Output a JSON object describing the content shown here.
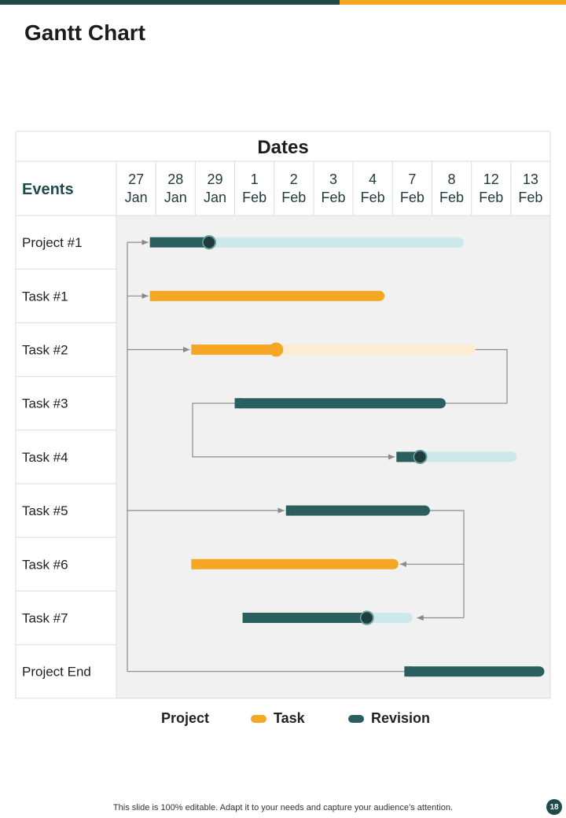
{
  "slide": {
    "title": "Gantt Chart",
    "footer": "This slide is 100% editable. Adapt it to your needs and capture your audience’s attention.",
    "page_number": "18"
  },
  "colors": {
    "revision": "#2a5f5e",
    "revision_light": "#cde8ea",
    "task": "#f5a623",
    "task_light": "#fdecd0",
    "grid_bg": "#f1f1f1",
    "connector": "#8a8a8a"
  },
  "chart_data": {
    "type": "gantt",
    "header": "Dates",
    "events_header": "Events",
    "dates": [
      {
        "day": "27",
        "month": "Jan"
      },
      {
        "day": "28",
        "month": "Jan"
      },
      {
        "day": "29",
        "month": "Jan"
      },
      {
        "day": "1",
        "month": "Feb"
      },
      {
        "day": "2",
        "month": "Feb"
      },
      {
        "day": "3",
        "month": "Feb"
      },
      {
        "day": "4",
        "month": "Feb"
      },
      {
        "day": "7",
        "month": "Feb"
      },
      {
        "day": "8",
        "month": "Feb"
      },
      {
        "day": "12",
        "month": "Feb"
      },
      {
        "day": "13",
        "month": "Feb"
      }
    ],
    "rows": [
      {
        "label": "Project #1",
        "kind": "revision",
        "start": 0.85,
        "end": 8.8,
        "progress": 2.35
      },
      {
        "label": "Task #1",
        "kind": "task",
        "start": 0.85,
        "end": 6.8
      },
      {
        "label": "Task #2",
        "kind": "task",
        "start": 1.9,
        "end": 9.1,
        "progress": 4.05
      },
      {
        "label": "Task #3",
        "kind": "revision",
        "start": 3.0,
        "end": 8.35
      },
      {
        "label": "Task #4",
        "kind": "revision",
        "start": 7.1,
        "end": 10.15,
        "progress": 7.7
      },
      {
        "label": "Task #5",
        "kind": "revision",
        "start": 4.3,
        "end": 7.95
      },
      {
        "label": "Task #6",
        "kind": "task",
        "start": 1.9,
        "end": 7.15
      },
      {
        "label": "Task #7",
        "kind": "revision",
        "start": 3.2,
        "end": 7.5,
        "progress": 6.35
      },
      {
        "label": "Project End",
        "kind": "revision",
        "start": 7.3,
        "end": 10.85
      }
    ],
    "links": [
      {
        "from": 0,
        "to": 0
      },
      {
        "from": 0,
        "to": 1
      },
      {
        "from": 0,
        "to": 2
      },
      {
        "from": 0,
        "to": 5
      },
      {
        "from": 0,
        "to": 8
      },
      {
        "from": 2,
        "to": 3
      },
      {
        "from": 3,
        "to": 4
      },
      {
        "from": 5,
        "to": 6
      },
      {
        "from": 5,
        "to": 7
      }
    ],
    "legend": [
      {
        "label": "Project",
        "swatch": "none"
      },
      {
        "label": "Task",
        "swatch": "task"
      },
      {
        "label": "Revision",
        "swatch": "revision"
      }
    ]
  }
}
